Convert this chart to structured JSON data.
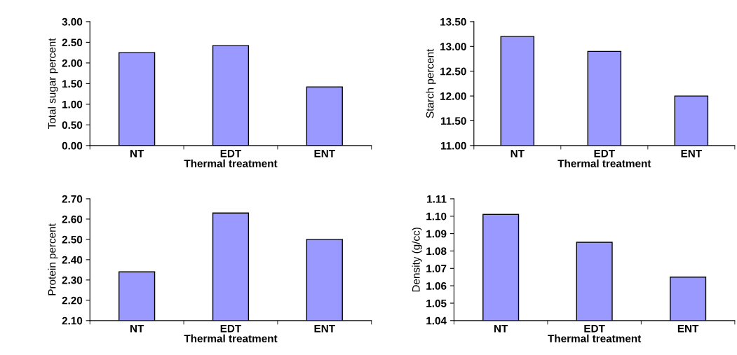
{
  "chart_data": [
    {
      "type": "bar",
      "xlabel": "Thermal treatment",
      "ylabel": "Total sugar percent",
      "categories": [
        "NT",
        "EDT",
        "ENT"
      ],
      "values": [
        2.25,
        2.42,
        1.42
      ],
      "color": "#9999ff",
      "ylim": [
        0,
        3
      ],
      "yticks": [
        {
          "value": 0,
          "label": "0.00"
        },
        {
          "value": 0.5,
          "label": "0.50"
        },
        {
          "value": 1,
          "label": "1.00"
        },
        {
          "value": 1.5,
          "label": "1.50"
        },
        {
          "value": 2,
          "label": "2.00"
        },
        {
          "value": 2.5,
          "label": "2.50"
        },
        {
          "value": 3,
          "label": "3.00"
        }
      ],
      "grid": false
    },
    {
      "type": "bar",
      "xlabel": "Thermal treatment",
      "ylabel": "Starch percent",
      "categories": [
        "NT",
        "EDT",
        "ENT"
      ],
      "values": [
        13.2,
        12.9,
        12.0
      ],
      "color": "#9999ff",
      "ylim": [
        11,
        13.5
      ],
      "yticks": [
        {
          "value": 11,
          "label": "11.00"
        },
        {
          "value": 11.5,
          "label": "11.50"
        },
        {
          "value": 12,
          "label": "12.00"
        },
        {
          "value": 12.5,
          "label": "12.50"
        },
        {
          "value": 13,
          "label": "13.00"
        },
        {
          "value": 13.5,
          "label": "13.50"
        }
      ],
      "grid": false
    },
    {
      "type": "bar",
      "xlabel": "Thermal treatment",
      "ylabel": "Protein percent",
      "categories": [
        "NT",
        "EDT",
        "ENT"
      ],
      "values": [
        2.34,
        2.63,
        2.5
      ],
      "color": "#9999ff",
      "ylim": [
        2.1,
        2.7
      ],
      "yticks": [
        {
          "value": 2.1,
          "label": "2.10"
        },
        {
          "value": 2.2,
          "label": "2.20"
        },
        {
          "value": 2.3,
          "label": "2.30"
        },
        {
          "value": 2.4,
          "label": "2.40"
        },
        {
          "value": 2.5,
          "label": "2.50"
        },
        {
          "value": 2.6,
          "label": "2.60"
        },
        {
          "value": 2.7,
          "label": "2.70"
        }
      ],
      "grid": false
    },
    {
      "type": "bar",
      "xlabel": "Thermal treatment",
      "ylabel": "Density (g/cc)",
      "categories": [
        "NT",
        "EDT",
        "ENT"
      ],
      "values": [
        1.101,
        1.085,
        1.065
      ],
      "color": "#9999ff",
      "ylim": [
        1.04,
        1.11
      ],
      "yticks": [
        1.04,
        1.05,
        1.06,
        1.07,
        1.08,
        1.09,
        {
          "value": 1.1,
          "label": "1.10"
        },
        1.11
      ],
      "grid": false
    }
  ]
}
